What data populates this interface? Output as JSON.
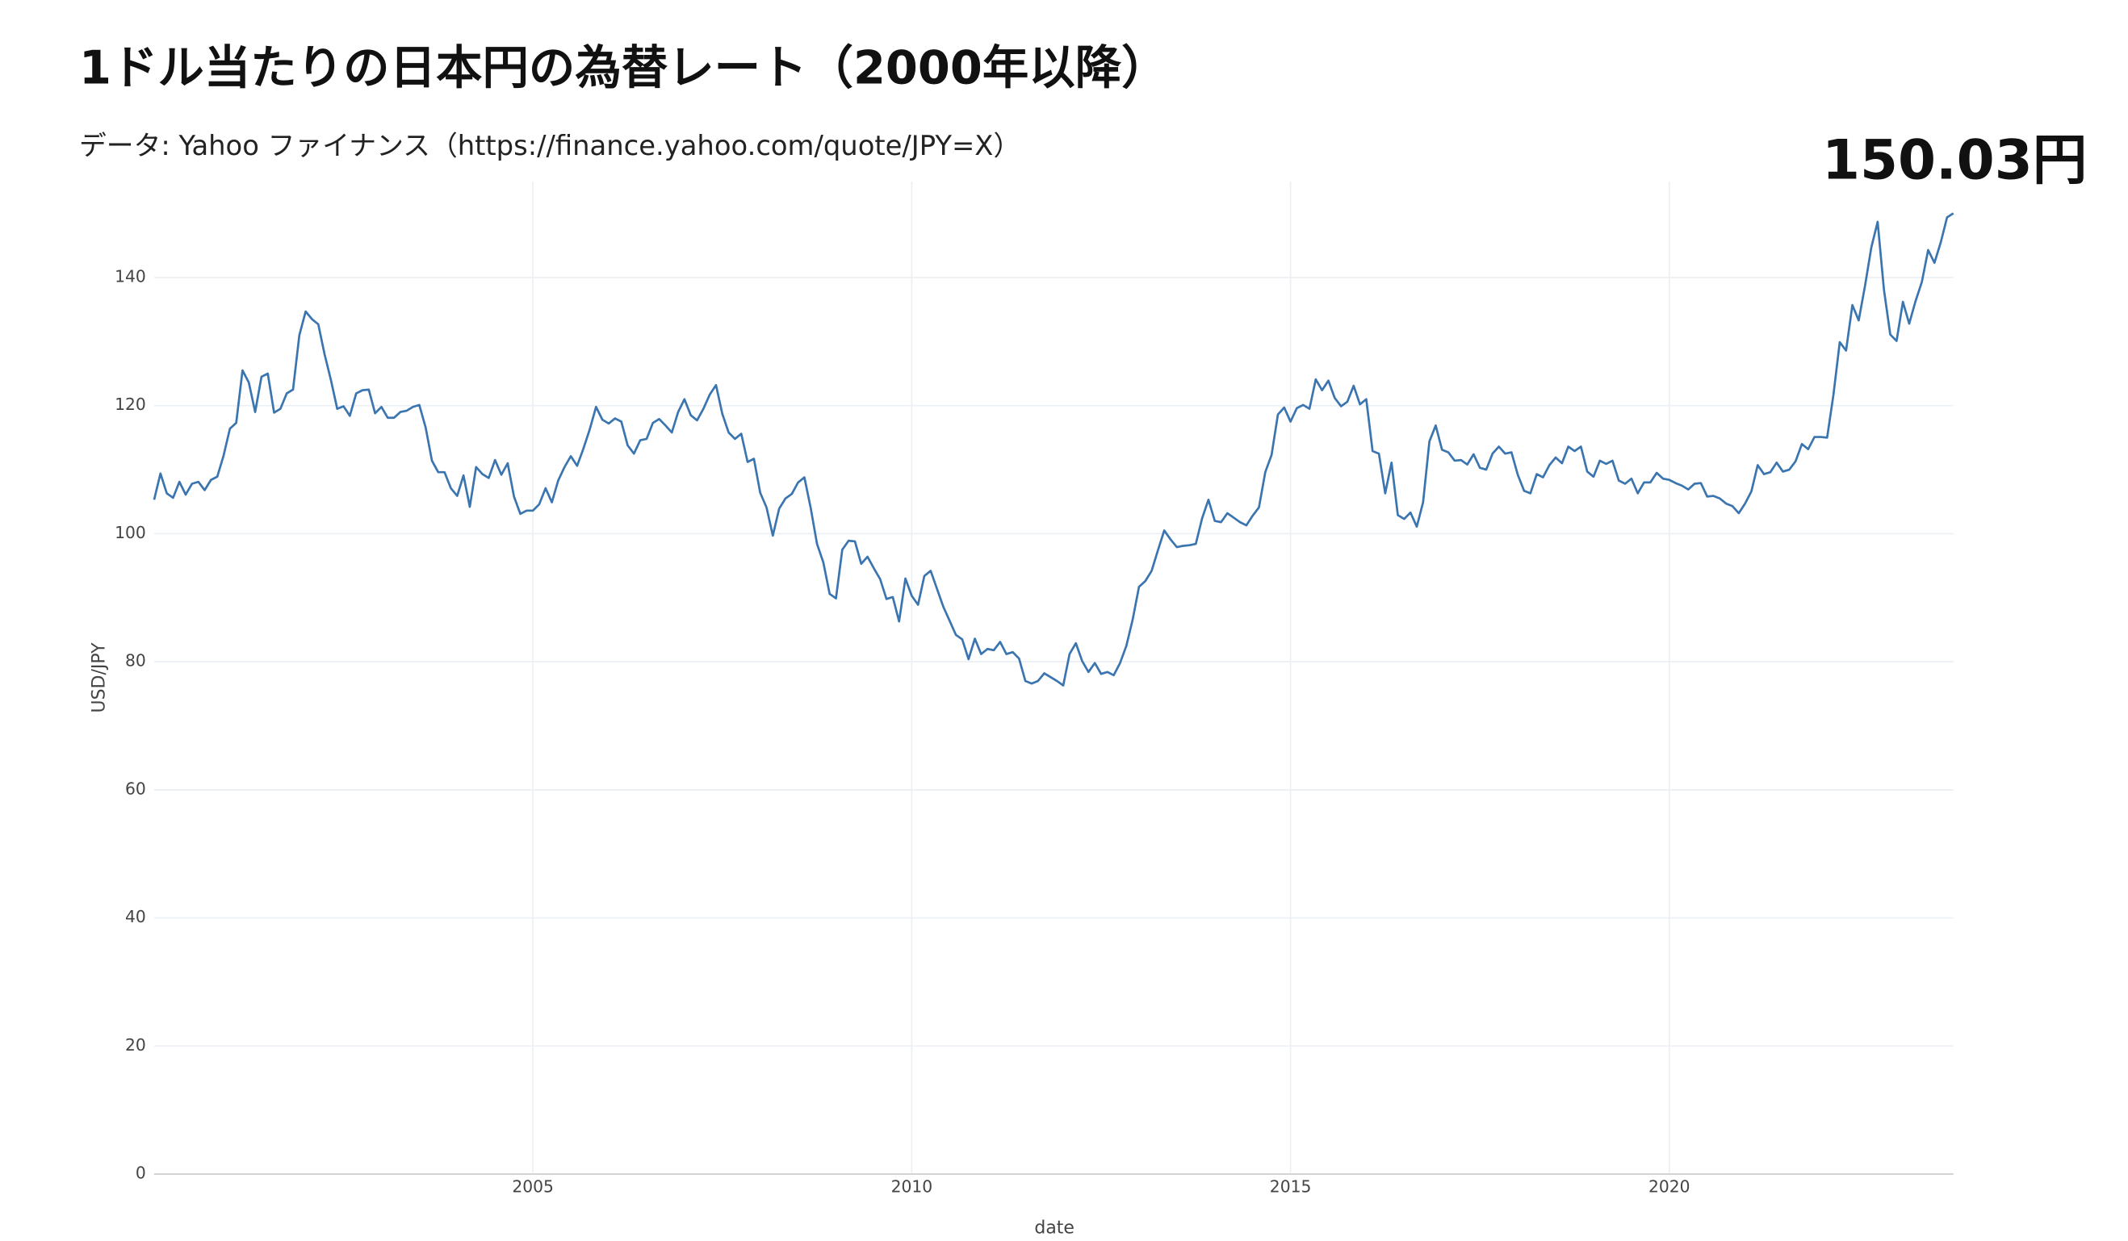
{
  "chart_data": {
    "type": "line",
    "title": "1ドル当たりの日本円の為替レート（2000年以降）",
    "subtitle": "データ: Yahoo ファイナンス（https://finance.yahoo.com/quote/JPY=X）",
    "annotation": "150.03円",
    "x_label": "date",
    "y_label": "USD/JPY",
    "color": "#3b75af",
    "grid": true,
    "xlim": [
      "2000-01",
      "2023-10"
    ],
    "xticks": [
      {
        "value": "2005-01",
        "label": "2005"
      },
      {
        "value": "2010-01",
        "label": "2010"
      },
      {
        "value": "2015-01",
        "label": "2015"
      },
      {
        "value": "2020-01",
        "label": "2020"
      }
    ],
    "ylim": [
      0,
      155
    ],
    "yticks": [
      0,
      20,
      40,
      60,
      80,
      100,
      120,
      140
    ],
    "x": [
      "2000-01",
      "2000-02",
      "2000-03",
      "2000-04",
      "2000-05",
      "2000-06",
      "2000-07",
      "2000-08",
      "2000-09",
      "2000-10",
      "2000-11",
      "2000-12",
      "2001-01",
      "2001-02",
      "2001-03",
      "2001-04",
      "2001-05",
      "2001-06",
      "2001-07",
      "2001-08",
      "2001-09",
      "2001-10",
      "2001-11",
      "2001-12",
      "2002-01",
      "2002-02",
      "2002-03",
      "2002-04",
      "2002-05",
      "2002-06",
      "2002-07",
      "2002-08",
      "2002-09",
      "2002-10",
      "2002-11",
      "2002-12",
      "2003-01",
      "2003-02",
      "2003-03",
      "2003-04",
      "2003-05",
      "2003-06",
      "2003-07",
      "2003-08",
      "2003-09",
      "2003-10",
      "2003-11",
      "2003-12",
      "2004-01",
      "2004-02",
      "2004-03",
      "2004-04",
      "2004-05",
      "2004-06",
      "2004-07",
      "2004-08",
      "2004-09",
      "2004-10",
      "2004-11",
      "2004-12",
      "2005-01",
      "2005-02",
      "2005-03",
      "2005-04",
      "2005-05",
      "2005-06",
      "2005-07",
      "2005-08",
      "2005-09",
      "2005-10",
      "2005-11",
      "2005-12",
      "2006-01",
      "2006-02",
      "2006-03",
      "2006-04",
      "2006-05",
      "2006-06",
      "2006-07",
      "2006-08",
      "2006-09",
      "2006-10",
      "2006-11",
      "2006-12",
      "2007-01",
      "2007-02",
      "2007-03",
      "2007-04",
      "2007-05",
      "2007-06",
      "2007-07",
      "2007-08",
      "2007-09",
      "2007-10",
      "2007-11",
      "2007-12",
      "2008-01",
      "2008-02",
      "2008-03",
      "2008-04",
      "2008-05",
      "2008-06",
      "2008-07",
      "2008-08",
      "2008-09",
      "2008-10",
      "2008-11",
      "2008-12",
      "2009-01",
      "2009-02",
      "2009-03",
      "2009-04",
      "2009-05",
      "2009-06",
      "2009-07",
      "2009-08",
      "2009-09",
      "2009-10",
      "2009-11",
      "2009-12",
      "2010-01",
      "2010-02",
      "2010-03",
      "2010-04",
      "2010-05",
      "2010-06",
      "2010-07",
      "2010-08",
      "2010-09",
      "2010-10",
      "2010-11",
      "2010-12",
      "2011-01",
      "2011-02",
      "2011-03",
      "2011-04",
      "2011-05",
      "2011-06",
      "2011-07",
      "2011-08",
      "2011-09",
      "2011-10",
      "2011-11",
      "2011-12",
      "2012-01",
      "2012-02",
      "2012-03",
      "2012-04",
      "2012-05",
      "2012-06",
      "2012-07",
      "2012-08",
      "2012-09",
      "2012-10",
      "2012-11",
      "2012-12",
      "2013-01",
      "2013-02",
      "2013-03",
      "2013-04",
      "2013-05",
      "2013-06",
      "2013-07",
      "2013-08",
      "2013-09",
      "2013-10",
      "2013-11",
      "2013-12",
      "2014-01",
      "2014-02",
      "2014-03",
      "2014-04",
      "2014-05",
      "2014-06",
      "2014-07",
      "2014-08",
      "2014-09",
      "2014-10",
      "2014-11",
      "2014-12",
      "2015-01",
      "2015-02",
      "2015-03",
      "2015-04",
      "2015-05",
      "2015-06",
      "2015-07",
      "2015-08",
      "2015-09",
      "2015-10",
      "2015-11",
      "2015-12",
      "2016-01",
      "2016-02",
      "2016-03",
      "2016-04",
      "2016-05",
      "2016-06",
      "2016-07",
      "2016-08",
      "2016-09",
      "2016-10",
      "2016-11",
      "2016-12",
      "2017-01",
      "2017-02",
      "2017-03",
      "2017-04",
      "2017-05",
      "2017-06",
      "2017-07",
      "2017-08",
      "2017-09",
      "2017-10",
      "2017-11",
      "2017-12",
      "2018-01",
      "2018-02",
      "2018-03",
      "2018-04",
      "2018-05",
      "2018-06",
      "2018-07",
      "2018-08",
      "2018-09",
      "2018-10",
      "2018-11",
      "2018-12",
      "2019-01",
      "2019-02",
      "2019-03",
      "2019-04",
      "2019-05",
      "2019-06",
      "2019-07",
      "2019-08",
      "2019-09",
      "2019-10",
      "2019-11",
      "2019-12",
      "2020-01",
      "2020-02",
      "2020-03",
      "2020-04",
      "2020-05",
      "2020-06",
      "2020-07",
      "2020-08",
      "2020-09",
      "2020-10",
      "2020-11",
      "2020-12",
      "2021-01",
      "2021-02",
      "2021-03",
      "2021-04",
      "2021-05",
      "2021-06",
      "2021-07",
      "2021-08",
      "2021-09",
      "2021-10",
      "2021-11",
      "2021-12",
      "2022-01",
      "2022-02",
      "2022-03",
      "2022-04",
      "2022-05",
      "2022-06",
      "2022-07",
      "2022-08",
      "2022-09",
      "2022-10",
      "2022-11",
      "2022-12",
      "2023-01",
      "2023-02",
      "2023-03",
      "2023-04",
      "2023-05",
      "2023-06",
      "2023-07",
      "2023-08",
      "2023-09",
      "2023-10"
    ],
    "values": [
      105.3,
      109.4,
      106.3,
      105.6,
      108.1,
      106.1,
      107.8,
      108.1,
      106.8,
      108.4,
      108.9,
      112.2,
      116.4,
      117.3,
      125.5,
      123.6,
      119.0,
      124.5,
      125.0,
      118.9,
      119.5,
      121.9,
      122.5,
      131.0,
      134.7,
      133.5,
      132.7,
      128.0,
      124.0,
      119.5,
      119.9,
      118.4,
      121.9,
      122.4,
      122.5,
      118.8,
      119.8,
      118.1,
      118.1,
      119.0,
      119.2,
      119.8,
      120.1,
      116.6,
      111.4,
      109.6,
      109.6,
      107.1,
      105.9,
      109.1,
      104.2,
      110.4,
      109.3,
      108.7,
      111.5,
      109.2,
      111.0,
      105.8,
      103.1,
      103.6,
      103.6,
      104.6,
      107.1,
      104.9,
      108.3,
      110.4,
      112.1,
      110.6,
      113.3,
      116.3,
      119.8,
      117.8,
      117.2,
      118.0,
      117.5,
      113.8,
      112.5,
      114.6,
      114.8,
      117.3,
      117.9,
      116.9,
      115.8,
      119.0,
      121.0,
      118.5,
      117.7,
      119.5,
      121.7,
      123.2,
      118.7,
      115.8,
      114.8,
      115.6,
      111.2,
      111.7,
      106.4,
      104.1,
      99.7,
      103.9,
      105.5,
      106.2,
      108.0,
      108.8,
      104.0,
      98.4,
      95.5,
      90.6,
      89.9,
      97.5,
      98.9,
      98.8,
      95.3,
      96.4,
      94.6,
      92.9,
      89.8,
      90.1,
      86.3,
      93.0,
      90.3,
      88.9,
      93.4,
      94.2,
      91.4,
      88.6,
      86.4,
      84.2,
      83.5,
      80.4,
      83.6,
      81.2,
      82.0,
      81.8,
      83.1,
      81.2,
      81.5,
      80.5,
      77.0,
      76.6,
      77.0,
      78.2,
      77.6,
      77.0,
      76.3,
      81.2,
      82.9,
      80.1,
      78.4,
      79.8,
      78.1,
      78.4,
      77.9,
      79.8,
      82.5,
      86.6,
      91.7,
      92.6,
      94.2,
      97.4,
      100.5,
      99.1,
      97.9,
      98.1,
      98.2,
      98.4,
      102.4,
      105.3,
      102.0,
      101.8,
      103.2,
      102.5,
      101.8,
      101.3,
      102.8,
      104.1,
      109.6,
      112.3,
      118.6,
      119.7,
      117.5,
      119.6,
      120.1,
      119.5,
      124.1,
      122.4,
      123.9,
      121.2,
      119.9,
      120.6,
      123.1,
      120.2,
      121.0,
      112.9,
      112.5,
      106.3,
      111.1,
      102.9,
      102.3,
      103.3,
      101.1,
      104.9,
      114.4,
      116.9,
      113.1,
      112.7,
      111.4,
      111.5,
      110.8,
      112.4,
      110.3,
      110.0,
      112.5,
      113.6,
      112.5,
      112.7,
      109.2,
      106.7,
      106.3,
      109.3,
      108.8,
      110.7,
      111.9,
      111.0,
      113.6,
      112.9,
      113.6,
      109.7,
      108.9,
      111.4,
      110.9,
      111.4,
      108.3,
      107.8,
      108.6,
      106.3,
      108.0,
      108.0,
      109.5,
      108.6,
      108.4,
      107.9,
      107.5,
      106.9,
      107.8,
      107.9,
      105.8,
      105.9,
      105.5,
      104.7,
      104.3,
      103.2,
      104.7,
      106.6,
      110.7,
      109.3,
      109.6,
      111.1,
      109.7,
      110.0,
      111.3,
      114.0,
      113.2,
      115.1,
      115.1,
      115.0,
      121.7,
      129.9,
      128.6,
      135.7,
      133.3,
      138.7,
      144.7,
      148.7,
      138.1,
      131.1,
      130.1,
      136.2,
      132.8,
      136.3,
      139.3,
      144.3,
      142.3,
      145.5,
      149.4,
      150.03
    ]
  }
}
